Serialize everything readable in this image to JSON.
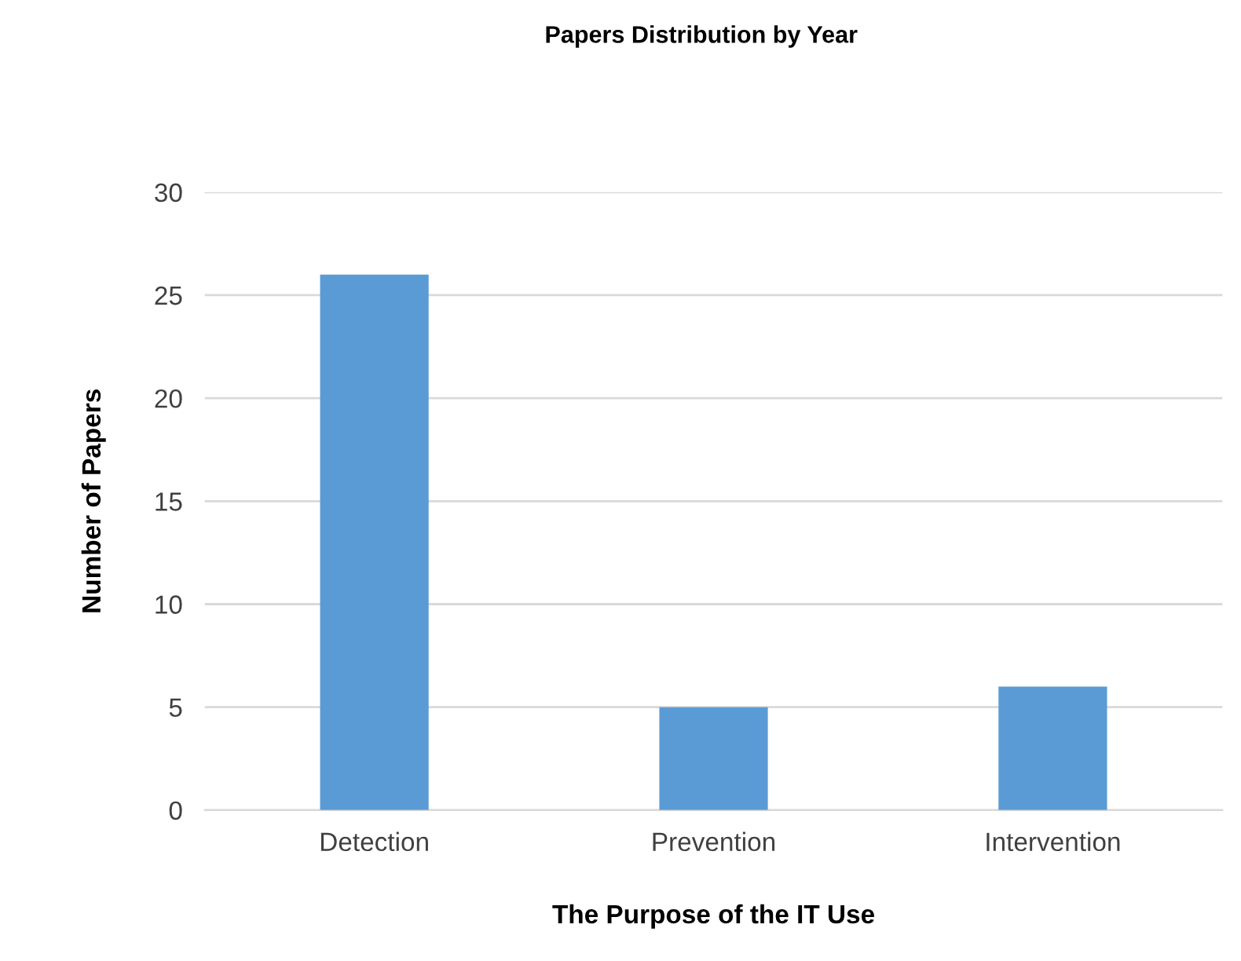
{
  "chart_data": {
    "type": "bar",
    "title": "Papers Distribution by Year",
    "xlabel": "The Purpose of the IT Use",
    "ylabel": "Number of Papers",
    "categories": [
      "Detection",
      "Prevention",
      "Intervention"
    ],
    "values": [
      26,
      5,
      6
    ],
    "color": "#5b9bd5",
    "ylim": [
      0,
      30
    ],
    "yticks": [
      0,
      5,
      10,
      15,
      20,
      25,
      30
    ],
    "grid": "y",
    "legend": false
  }
}
